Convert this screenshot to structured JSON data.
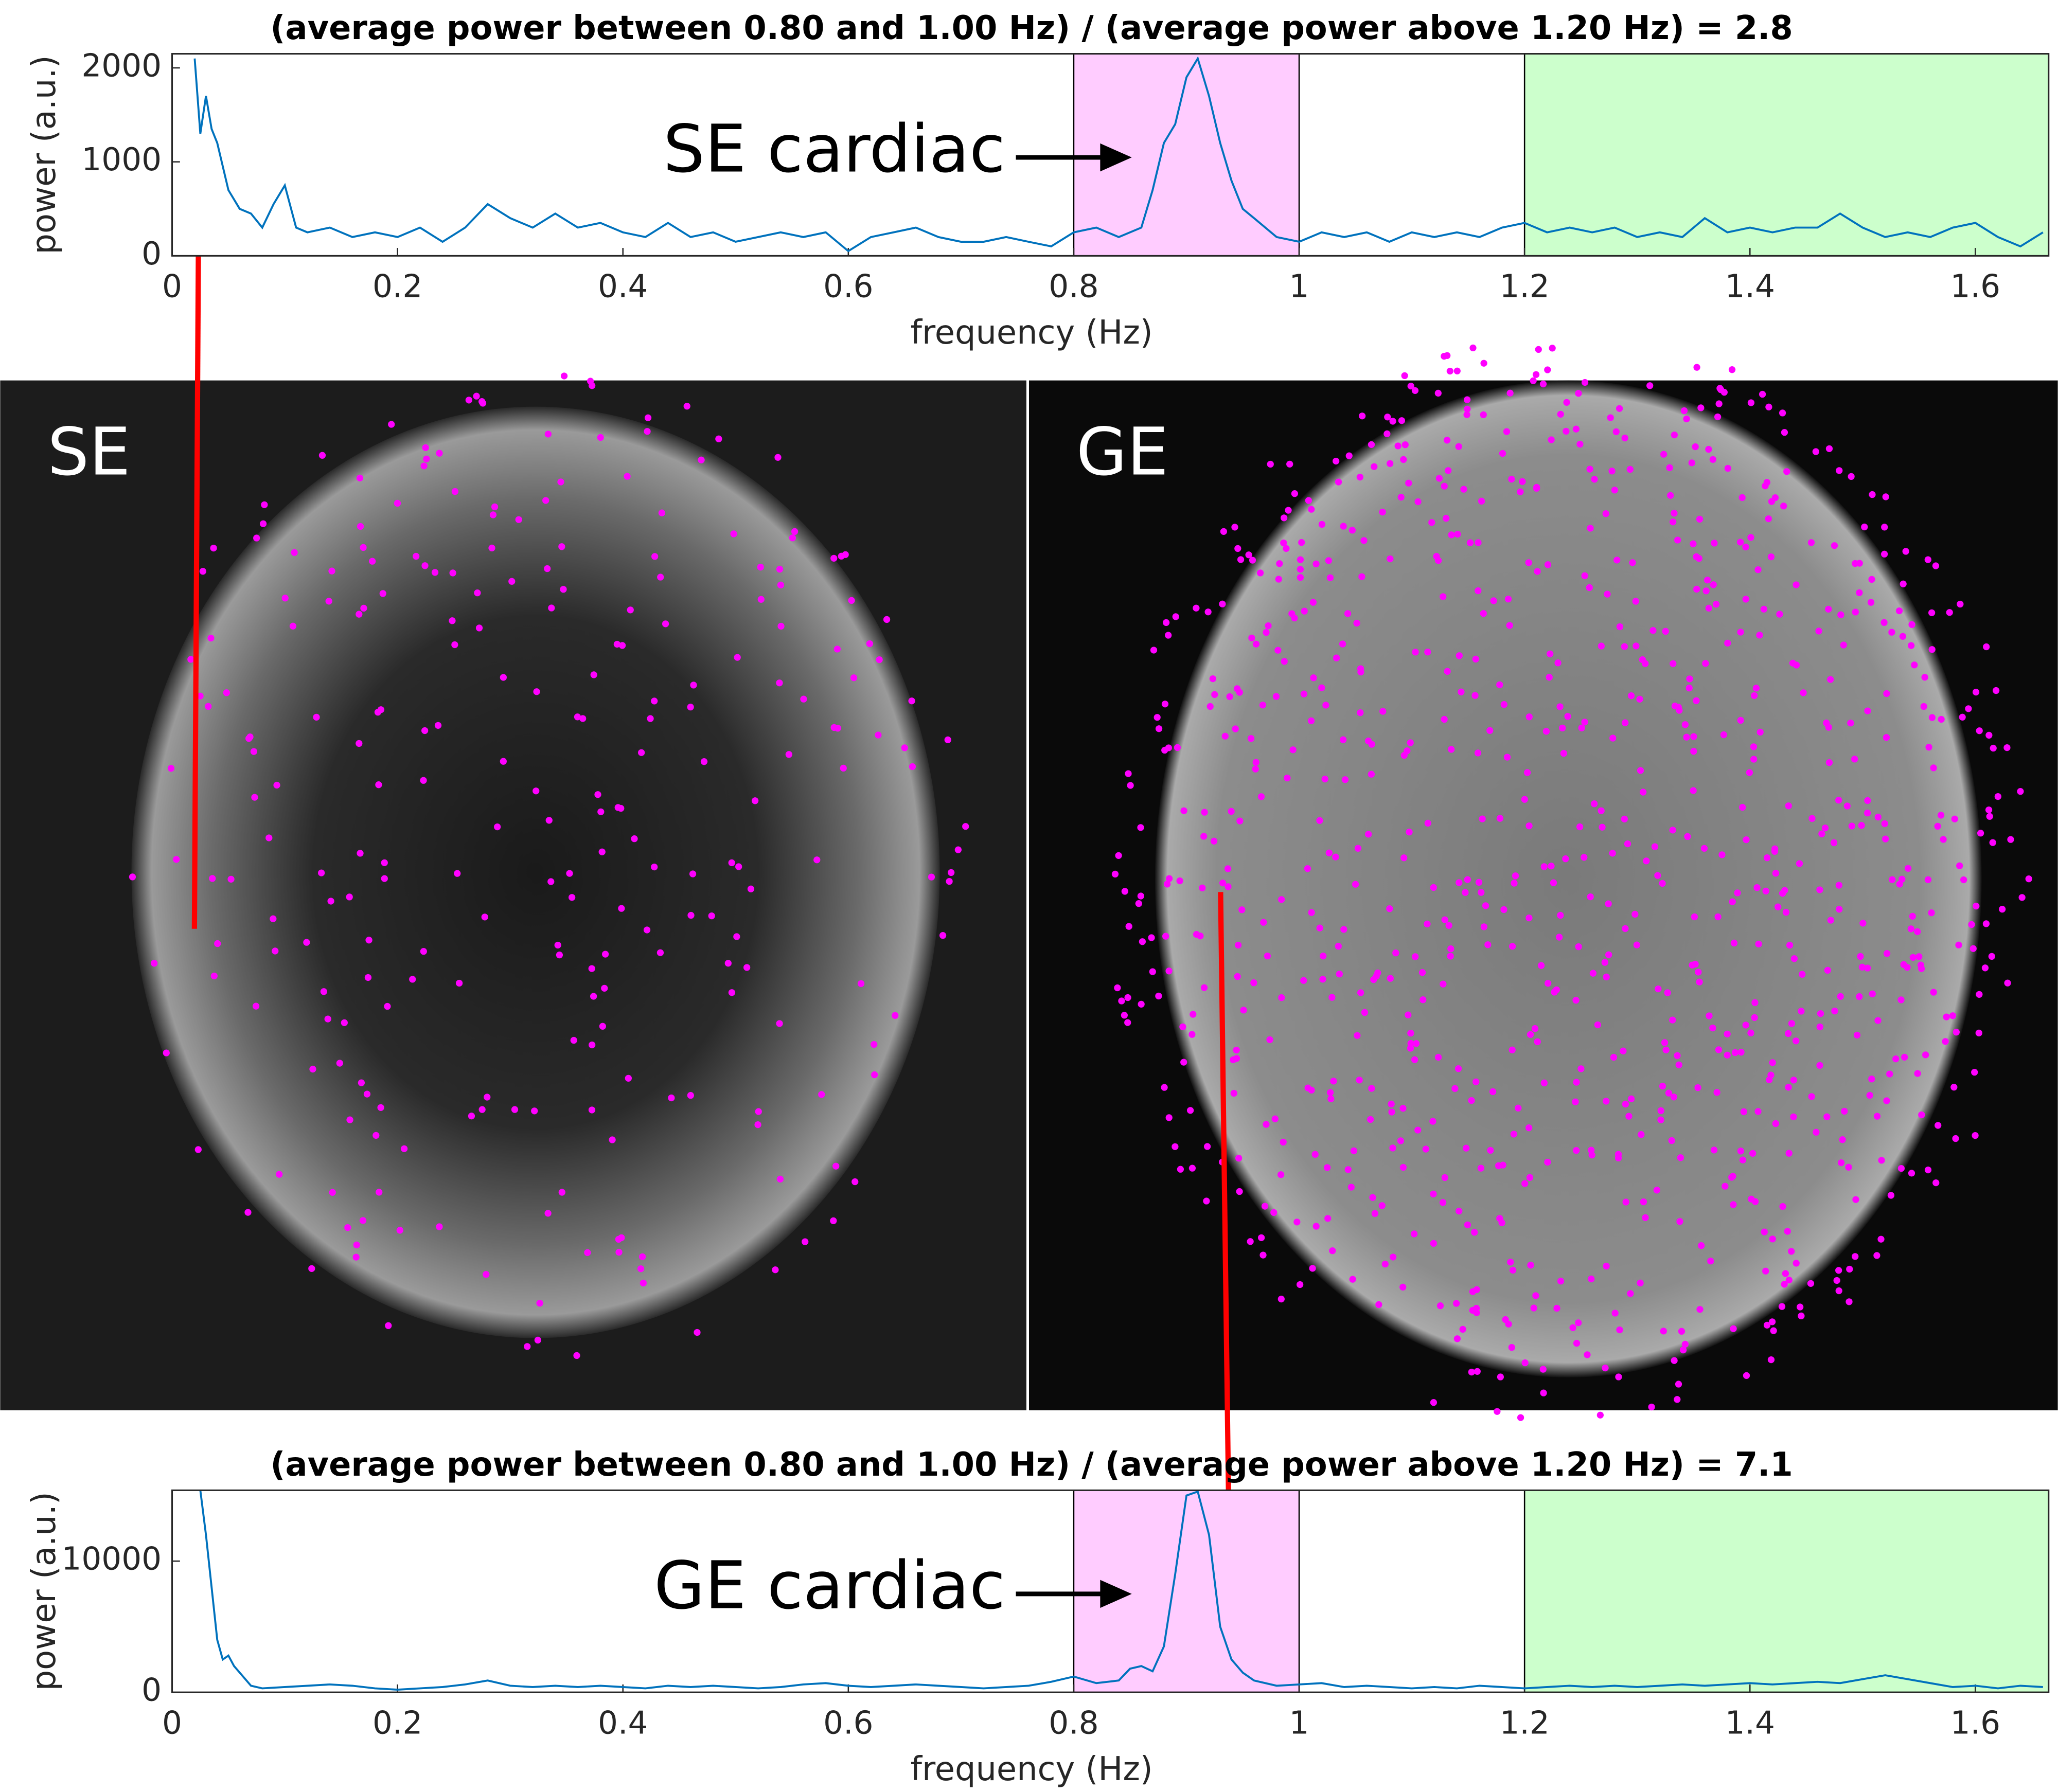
{
  "chart_data": [
    {
      "type": "line",
      "title": "(average power between 0.80 and 1.00 Hz) / (average power above 1.20 Hz) = 2.8",
      "xlabel": "frequency (Hz)",
      "ylabel": "power (a.u.)",
      "annotation": "SE cardiac",
      "color": "#0072bd",
      "xlim": [
        0,
        1.665
      ],
      "ylim": [
        0,
        2150
      ],
      "xticks": [
        0,
        0.2,
        0.4,
        0.6,
        0.8,
        1,
        1.2,
        1.4,
        1.6
      ],
      "yticks": [
        0,
        1000,
        2000
      ],
      "bands": [
        {
          "from": 0.8,
          "to": 1.0,
          "color": "#ffccff"
        },
        {
          "from": 1.2,
          "to": 1.665,
          "color": "#ccffcc"
        }
      ],
      "x": [
        0.02,
        0.025,
        0.03,
        0.035,
        0.04,
        0.05,
        0.06,
        0.07,
        0.08,
        0.09,
        0.1,
        0.11,
        0.12,
        0.14,
        0.16,
        0.18,
        0.2,
        0.22,
        0.24,
        0.26,
        0.28,
        0.3,
        0.32,
        0.34,
        0.36,
        0.38,
        0.4,
        0.42,
        0.44,
        0.46,
        0.48,
        0.5,
        0.52,
        0.54,
        0.56,
        0.58,
        0.6,
        0.62,
        0.64,
        0.66,
        0.68,
        0.7,
        0.72,
        0.74,
        0.76,
        0.78,
        0.8,
        0.82,
        0.84,
        0.86,
        0.87,
        0.88,
        0.89,
        0.9,
        0.91,
        0.92,
        0.93,
        0.94,
        0.95,
        0.96,
        0.98,
        1.0,
        1.02,
        1.04,
        1.06,
        1.08,
        1.1,
        1.12,
        1.14,
        1.16,
        1.18,
        1.2,
        1.22,
        1.24,
        1.26,
        1.28,
        1.3,
        1.32,
        1.34,
        1.36,
        1.38,
        1.4,
        1.42,
        1.44,
        1.46,
        1.48,
        1.5,
        1.52,
        1.54,
        1.56,
        1.58,
        1.6,
        1.62,
        1.64,
        1.66
      ],
      "values": [
        2100,
        1300,
        1700,
        1350,
        1200,
        700,
        500,
        450,
        300,
        550,
        750,
        300,
        250,
        300,
        200,
        250,
        200,
        300,
        150,
        300,
        550,
        400,
        300,
        450,
        300,
        350,
        250,
        200,
        350,
        200,
        250,
        150,
        200,
        250,
        200,
        250,
        50,
        200,
        250,
        300,
        200,
        150,
        150,
        200,
        150,
        100,
        250,
        300,
        200,
        300,
        700,
        1200,
        1400,
        1900,
        2100,
        1700,
        1200,
        800,
        500,
        400,
        200,
        150,
        250,
        200,
        250,
        150,
        250,
        200,
        250,
        200,
        300,
        350,
        250,
        300,
        250,
        300,
        200,
        250,
        200,
        400,
        250,
        300,
        250,
        300,
        300,
        450,
        300,
        200,
        250,
        200,
        300,
        350,
        200,
        100,
        250
      ]
    },
    {
      "type": "line",
      "title": "(average power between 0.80 and 1.00 Hz) / (average power above 1.20 Hz) = 7.1",
      "xlabel": "frequency (Hz)",
      "ylabel": "power (a.u.)",
      "annotation": "GE cardiac",
      "color": "#0072bd",
      "xlim": [
        0,
        1.665
      ],
      "ylim": [
        0,
        15400
      ],
      "xticks": [
        0,
        0.2,
        0.4,
        0.6,
        0.8,
        1,
        1.2,
        1.4,
        1.6
      ],
      "yticks": [
        0,
        10000
      ],
      "bands": [
        {
          "from": 0.8,
          "to": 1.0,
          "color": "#ffccff"
        },
        {
          "from": 1.2,
          "to": 1.665,
          "color": "#ccffcc"
        }
      ],
      "x": [
        0.025,
        0.03,
        0.035,
        0.04,
        0.045,
        0.05,
        0.055,
        0.06,
        0.07,
        0.08,
        0.1,
        0.12,
        0.14,
        0.16,
        0.18,
        0.2,
        0.22,
        0.24,
        0.26,
        0.28,
        0.3,
        0.32,
        0.34,
        0.36,
        0.38,
        0.4,
        0.42,
        0.44,
        0.46,
        0.48,
        0.5,
        0.52,
        0.54,
        0.56,
        0.58,
        0.6,
        0.62,
        0.64,
        0.66,
        0.68,
        0.7,
        0.72,
        0.74,
        0.76,
        0.78,
        0.8,
        0.82,
        0.84,
        0.85,
        0.86,
        0.87,
        0.88,
        0.89,
        0.9,
        0.91,
        0.92,
        0.93,
        0.94,
        0.95,
        0.96,
        0.98,
        1.0,
        1.02,
        1.04,
        1.06,
        1.08,
        1.1,
        1.12,
        1.14,
        1.16,
        1.18,
        1.2,
        1.22,
        1.24,
        1.26,
        1.28,
        1.3,
        1.32,
        1.34,
        1.36,
        1.38,
        1.4,
        1.42,
        1.44,
        1.46,
        1.48,
        1.5,
        1.52,
        1.54,
        1.56,
        1.58,
        1.6,
        1.62,
        1.64,
        1.66
      ],
      "values": [
        15400,
        12000,
        8000,
        4000,
        2500,
        2800,
        2000,
        1500,
        500,
        300,
        400,
        500,
        600,
        500,
        300,
        200,
        300,
        400,
        600,
        900,
        500,
        400,
        500,
        400,
        500,
        400,
        300,
        500,
        400,
        500,
        400,
        300,
        400,
        600,
        700,
        500,
        400,
        500,
        600,
        500,
        400,
        300,
        400,
        500,
        800,
        1200,
        700,
        900,
        1800,
        2000,
        1600,
        3500,
        9000,
        15000,
        15300,
        12000,
        5000,
        2500,
        1500,
        900,
        500,
        600,
        700,
        400,
        500,
        400,
        300,
        400,
        300,
        500,
        400,
        300,
        400,
        500,
        400,
        500,
        400,
        500,
        600,
        500,
        600,
        700,
        600,
        700,
        800,
        700,
        1000,
        1300,
        1000,
        700,
        400,
        500,
        300,
        500,
        400
      ]
    }
  ],
  "panels": [
    "SE",
    "GE"
  ]
}
